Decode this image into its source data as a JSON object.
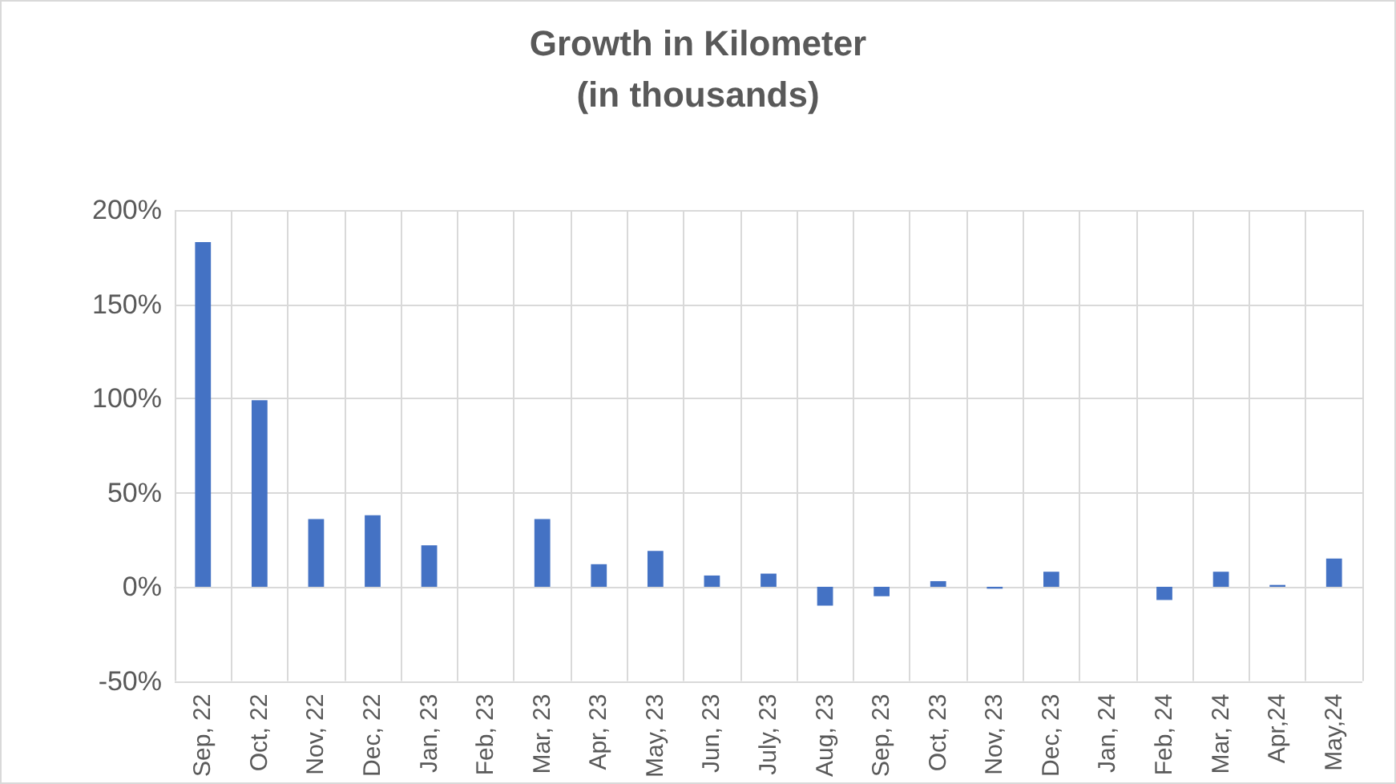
{
  "chart_data": {
    "type": "bar",
    "title": "Growth in Kilometer",
    "subtitle": "(in thousands)",
    "categories": [
      "Sep, 22",
      "Oct, 22",
      "Nov, 22",
      "Dec, 22",
      "Jan, 23",
      "Feb, 23",
      "Mar, 23",
      "Apr, 23",
      "May, 23",
      "Jun, 23",
      "July, 23",
      "Aug, 23",
      "Sep, 23",
      "Oct, 23",
      "Nov, 23",
      "Dec, 23",
      "Jan, 24",
      "Feb, 24",
      "Mar, 24",
      "Apr,24",
      "May,24"
    ],
    "values": [
      183,
      99,
      36,
      38,
      22,
      0,
      36,
      12,
      19,
      6,
      7,
      -10,
      -5,
      3,
      -1,
      8,
      0,
      -7,
      8,
      1,
      15
    ],
    "color": "#4472c4",
    "ylim": [
      -50,
      200
    ],
    "yticks": [
      {
        "value": -50,
        "label": "-50%"
      },
      {
        "value": 0,
        "label": "0%"
      },
      {
        "value": 50,
        "label": "50%"
      },
      {
        "value": 100,
        "label": "100%"
      },
      {
        "value": 150,
        "label": "150%"
      },
      {
        "value": 200,
        "label": "200%"
      }
    ],
    "grid": true
  }
}
